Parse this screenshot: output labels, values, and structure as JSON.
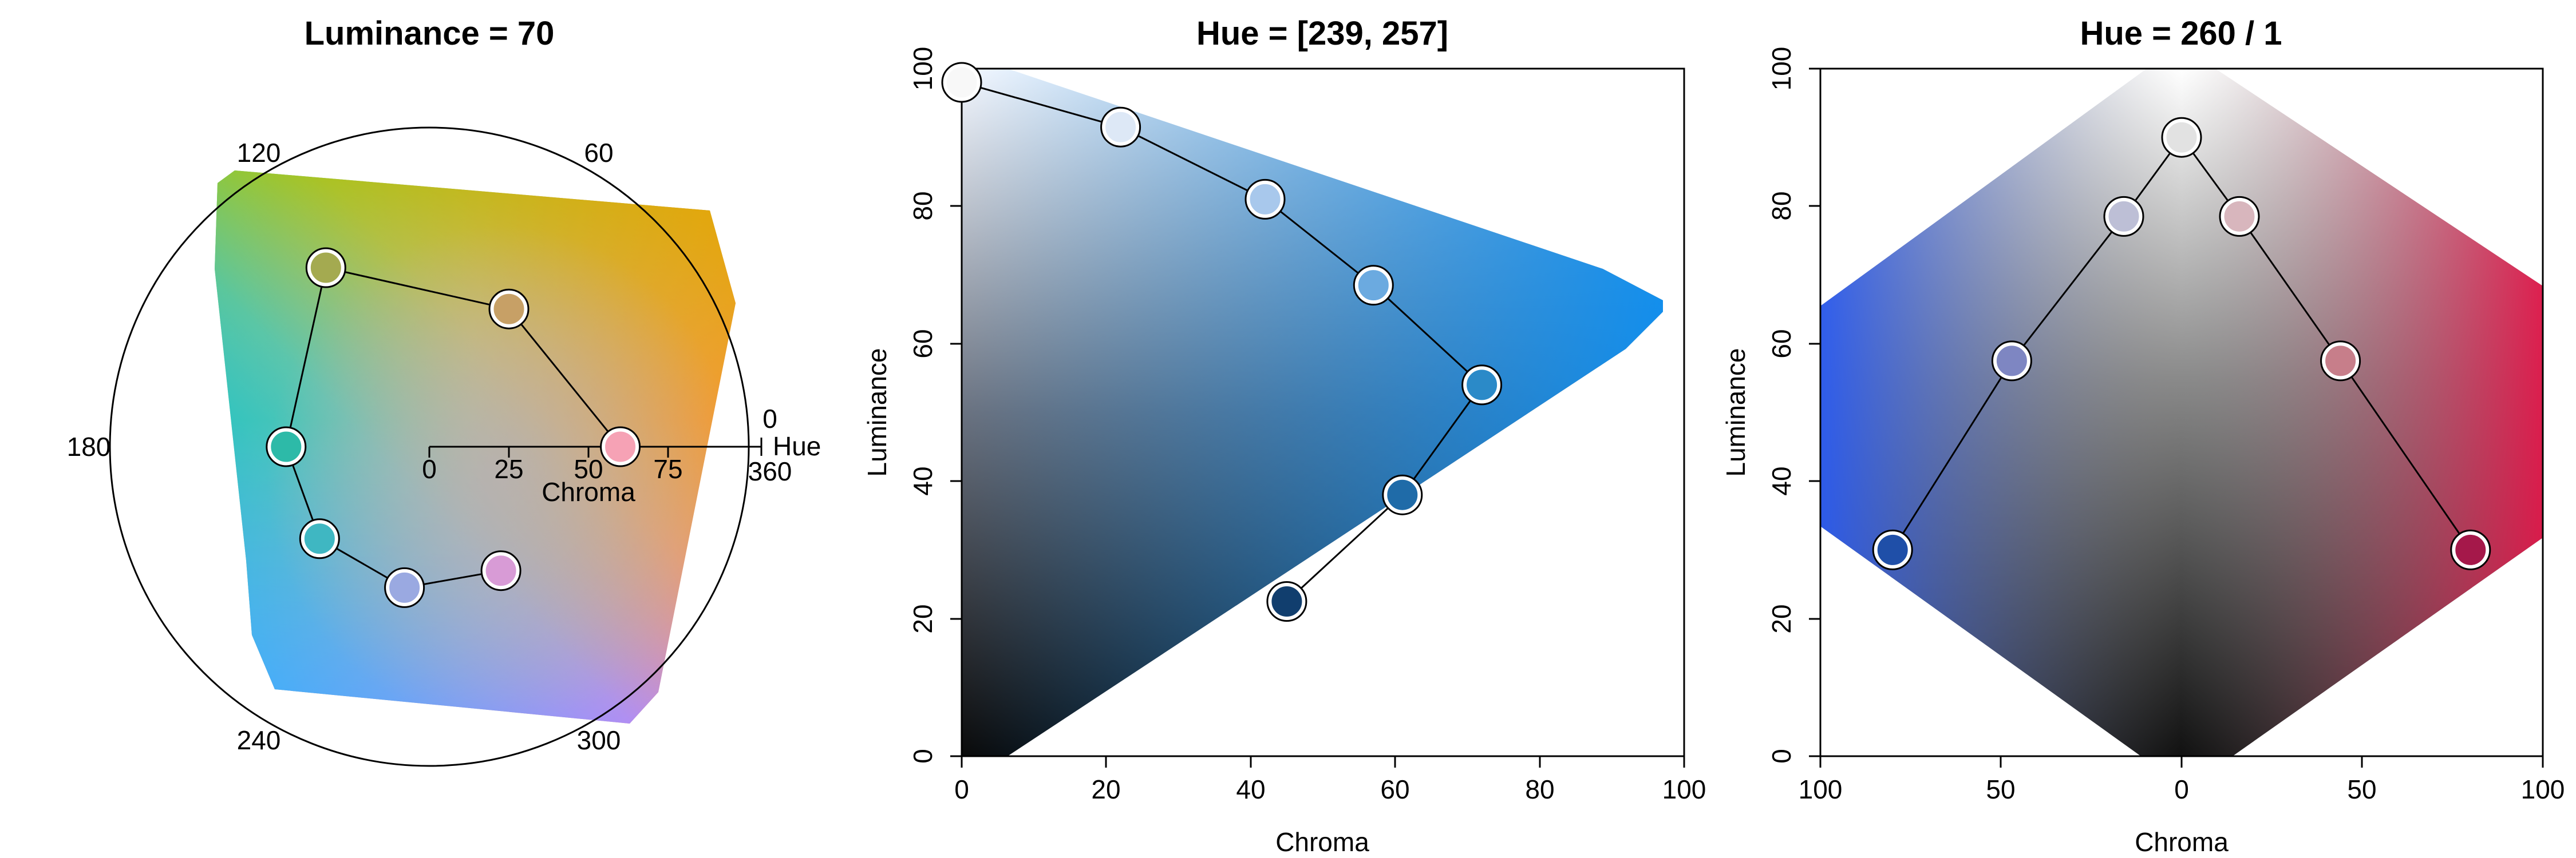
{
  "chart_data": [
    {
      "type": "scatter",
      "panel": "polar-hue-chroma",
      "title": "Luminance = 70",
      "hue_tick_labels": [
        "0",
        "60",
        "120",
        "180",
        "240",
        "300",
        "360"
      ],
      "chroma_tick_labels": [
        "0",
        "25",
        "50",
        "75"
      ],
      "xlabel": "Chroma",
      "hue_axis_label": "Hue",
      "luminance": 70,
      "chroma_max": 100,
      "points": [
        {
          "hue": 0,
          "chroma": 60,
          "color": "#F6A2B5"
        },
        {
          "hue": 60,
          "chroma": 50,
          "color": "#C7A066"
        },
        {
          "hue": 120,
          "chroma": 65,
          "color": "#A4AA50"
        },
        {
          "hue": 180,
          "chroma": 45,
          "color": "#2DBAA8"
        },
        {
          "hue": 220,
          "chroma": 45,
          "color": "#3FB7C2"
        },
        {
          "hue": 260,
          "chroma": 45,
          "color": "#9AA9E1"
        },
        {
          "hue": 300,
          "chroma": 45,
          "color": "#D89BD6"
        }
      ]
    },
    {
      "type": "scatter",
      "panel": "chroma-luminance",
      "title": "Hue = [239, 257]",
      "xlabel": "Chroma",
      "ylabel": "Luminance",
      "xlim": [
        0,
        100
      ],
      "ylim": [
        0,
        100
      ],
      "xticks": [
        "0",
        "20",
        "40",
        "60",
        "80",
        "100"
      ],
      "yticks": [
        "0",
        "20",
        "40",
        "60",
        "80",
        "100"
      ],
      "points": [
        {
          "chroma": 0,
          "luminance": 98,
          "color": "#F8F8F8"
        },
        {
          "chroma": 22,
          "luminance": 91.5,
          "color": "#DDE8F6"
        },
        {
          "chroma": 42,
          "luminance": 81,
          "color": "#A8C8EC"
        },
        {
          "chroma": 57,
          "luminance": 68.5,
          "color": "#6BAAE0"
        },
        {
          "chroma": 72,
          "luminance": 54,
          "color": "#2B8AC8"
        },
        {
          "chroma": 61,
          "luminance": 38,
          "color": "#1F6BA8"
        },
        {
          "chroma": 45,
          "luminance": 22.5,
          "color": "#113E6E"
        }
      ]
    },
    {
      "type": "scatter",
      "panel": "diverging",
      "title": "Hue = 260 / 1",
      "xlabel": "Chroma",
      "ylabel": "Luminance",
      "xlim": [
        100,
        -100
      ],
      "ylim": [
        0,
        100
      ],
      "xticks": [
        "100",
        "50",
        "0",
        "50",
        "100"
      ],
      "yticks": [
        "0",
        "20",
        "40",
        "60",
        "80",
        "100"
      ],
      "points": [
        {
          "chroma": 80,
          "luminance": 30,
          "color": "#1F4FA8"
        },
        {
          "chroma": 47,
          "luminance": 57.5,
          "color": "#7E86C2"
        },
        {
          "chroma": 16,
          "luminance": 78.5,
          "color": "#BDBFD6"
        },
        {
          "chroma": 0,
          "luminance": 90,
          "color": "#E2E2E2"
        },
        {
          "chroma": -16,
          "luminance": 78.5,
          "color": "#D8B6BD"
        },
        {
          "chroma": -44,
          "luminance": 57.5,
          "color": "#C77E8A"
        },
        {
          "chroma": -80,
          "luminance": 30,
          "color": "#A5184A"
        }
      ]
    }
  ]
}
